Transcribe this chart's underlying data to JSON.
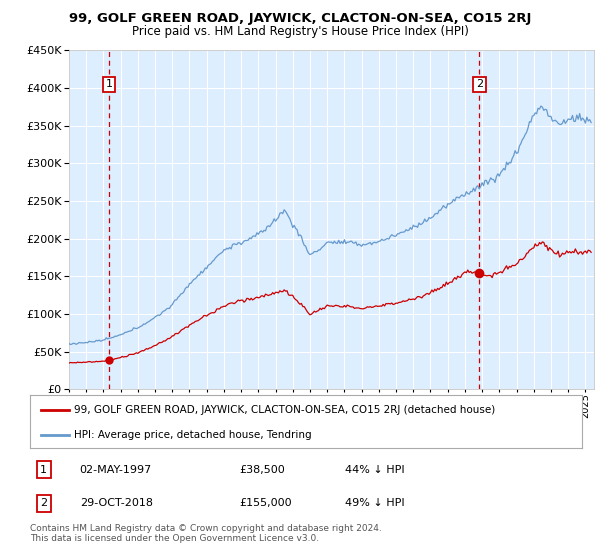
{
  "title": "99, GOLF GREEN ROAD, JAYWICK, CLACTON-ON-SEA, CO15 2RJ",
  "subtitle": "Price paid vs. HM Land Registry's House Price Index (HPI)",
  "purchase1": {
    "date_label": "02-MAY-1997",
    "year": 1997.33,
    "price": 38500,
    "label": "1"
  },
  "purchase2": {
    "date_label": "29-OCT-2018",
    "year": 2018.83,
    "price": 155000,
    "label": "2"
  },
  "legend_property": "99, GOLF GREEN ROAD, JAYWICK, CLACTON-ON-SEA, CO15 2RJ (detached house)",
  "legend_hpi": "HPI: Average price, detached house, Tendring",
  "footnote": "Contains HM Land Registry data © Crown copyright and database right 2024.\nThis data is licensed under the Open Government Licence v3.0.",
  "property_line_color": "#cc0000",
  "hpi_line_color": "#6699cc",
  "dashed_line_color": "#cc0000",
  "background_color": "#ddeeff",
  "ylim": [
    0,
    450000
  ],
  "xlim_start": 1995.0,
  "xlim_end": 2025.5,
  "hpi_waypoints": {
    "1995.0": 60000,
    "1996.0": 62000,
    "1997.0": 65000,
    "1998.0": 72000,
    "1999.0": 82000,
    "2000.0": 95000,
    "2001.0": 112000,
    "2002.0": 140000,
    "2003.0": 162000,
    "2004.0": 185000,
    "2005.0": 195000,
    "2006.0": 205000,
    "2007.0": 225000,
    "2007.5": 238000,
    "2008.0": 220000,
    "2008.5": 200000,
    "2009.0": 178000,
    "2009.5": 185000,
    "2010.0": 195000,
    "2011.0": 195000,
    "2012.0": 192000,
    "2013.0": 196000,
    "2014.0": 205000,
    "2015.0": 215000,
    "2016.0": 228000,
    "2017.0": 245000,
    "2018.0": 260000,
    "2018.83": 270000,
    "2019.0": 272000,
    "2020.0": 285000,
    "2021.0": 315000,
    "2021.5": 340000,
    "2022.0": 365000,
    "2022.5": 378000,
    "2023.0": 360000,
    "2023.5": 352000,
    "2024.0": 358000,
    "2024.5": 362000,
    "2025.0": 358000,
    "2025.25": 356000
  },
  "prop_waypoints_1997_2018": {
    "1995.0": 35000,
    "1996.0": 36000,
    "1997.0": 37000,
    "1997.33": 38500,
    "1998.0": 42000,
    "1999.0": 48000,
    "2000.0": 58000,
    "2001.0": 70000,
    "2002.0": 85000,
    "2003.0": 98000,
    "2004.0": 110000,
    "2005.0": 118000,
    "2006.0": 122000,
    "2007.0": 128000,
    "2007.5": 132000,
    "2008.0": 122000,
    "2008.5": 112000,
    "2009.0": 100000,
    "2009.5": 105000,
    "2010.0": 110000,
    "2011.0": 110000,
    "2012.0": 108000,
    "2013.0": 110000,
    "2014.0": 115000,
    "2015.0": 120000,
    "2016.0": 128000,
    "2017.0": 140000,
    "2018.0": 155000,
    "2018.83": 155000
  },
  "prop_waypoints_after_2018": {
    "2018.83": 155000,
    "2019.0": 152000,
    "2019.5": 150000,
    "2020.0": 155000,
    "2021.0": 168000,
    "2021.5": 178000,
    "2022.0": 190000,
    "2022.5": 195000,
    "2023.0": 185000,
    "2023.5": 178000,
    "2024.0": 182000,
    "2024.5": 183000,
    "2025.0": 182000,
    "2025.25": 181000
  }
}
